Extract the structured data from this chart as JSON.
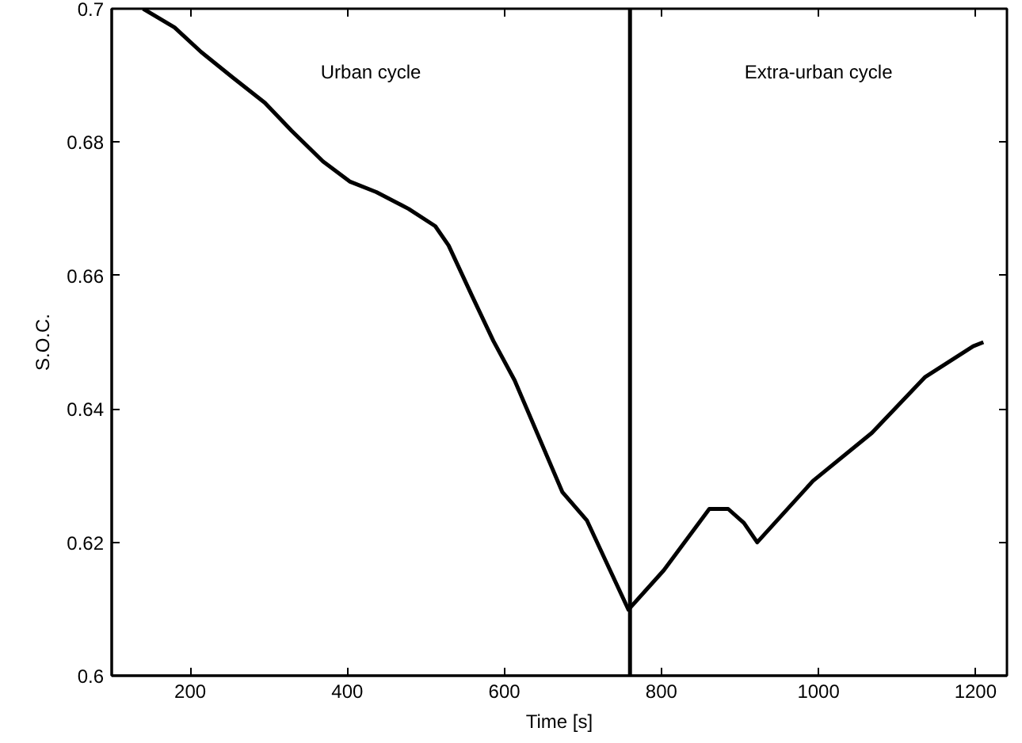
{
  "chart_data": {
    "type": "line",
    "xlabel": "Time [s]",
    "ylabel": "S.O.C.",
    "x": [
      140,
      180,
      214,
      254,
      295,
      329,
      369,
      403,
      437,
      478,
      512,
      529,
      559,
      586,
      613,
      674,
      705,
      758,
      803,
      861,
      885,
      905,
      922,
      993,
      1068,
      1136,
      1197,
      1210
    ],
    "series": [
      {
        "color": "#000000",
        "values": [
          0.7,
          0.6972,
          0.6935,
          0.6897,
          0.6859,
          0.6817,
          0.6771,
          0.6741,
          0.6725,
          0.67,
          0.6674,
          0.6645,
          0.6569,
          0.6502,
          0.6443,
          0.6275,
          0.6233,
          0.6099,
          0.6158,
          0.625,
          0.625,
          0.6229,
          0.62,
          0.6292,
          0.6364,
          0.6448,
          0.6494,
          0.65
        ]
      }
    ],
    "xlim": [
      100,
      1240
    ],
    "ylim": [
      0.6,
      0.7
    ],
    "xticks": [
      200,
      400,
      600,
      800,
      1000,
      1200
    ],
    "yticks": [
      0.6,
      0.62,
      0.64,
      0.66,
      0.68,
      0.7
    ],
    "ref_lines": [
      {
        "axis": "x",
        "value": 760,
        "color": "#000000"
      }
    ],
    "annotations": [
      "Urban cycle",
      "Extra-urban cycle"
    ],
    "grid": false,
    "marker": "none",
    "line_style": "solid"
  }
}
